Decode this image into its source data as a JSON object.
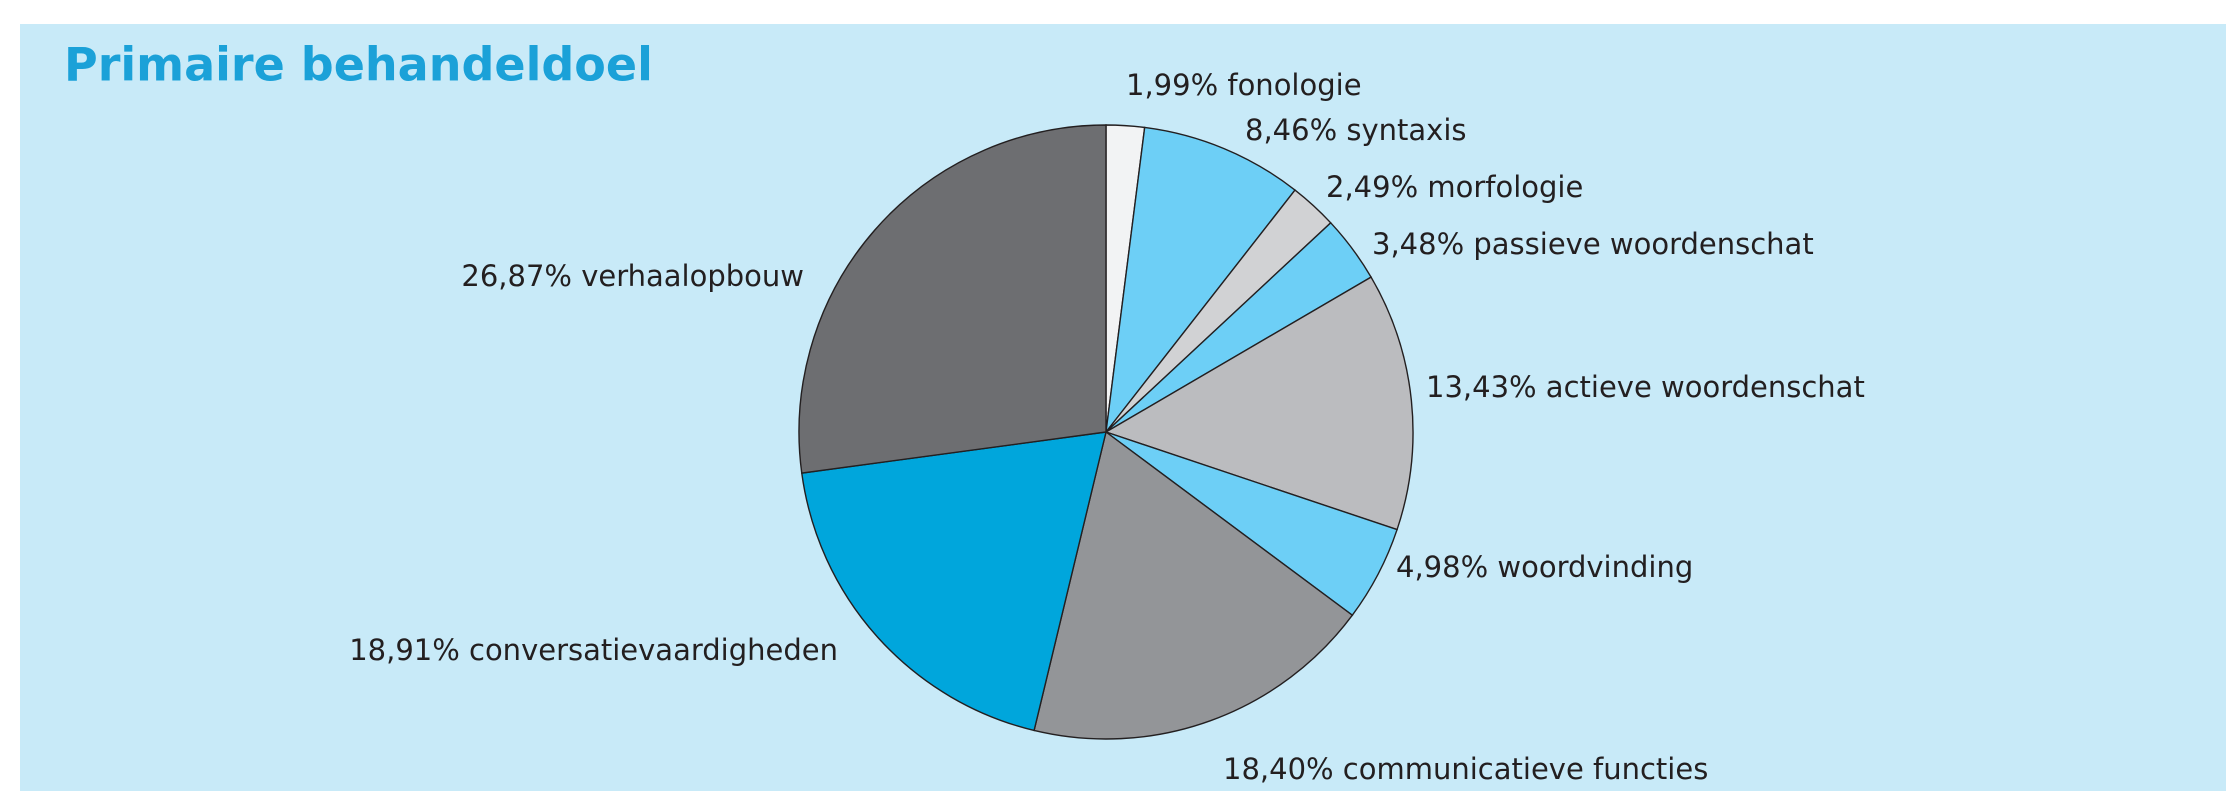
{
  "chart_data": {
    "type": "pie",
    "title": "Primaire behandeldoel",
    "categories": [
      "fonologie",
      "syntaxis",
      "morfologie",
      "passieve woordenschat",
      "actieve woordenschat",
      "woordvinding",
      "communicatieve functies",
      "conversatievaardigheden",
      "verhaalopbouw"
    ],
    "values": [
      1.99,
      8.46,
      2.49,
      3.48,
      13.43,
      4.98,
      18.4,
      18.91,
      26.87
    ],
    "value_labels": [
      "1,99%",
      "8,46%",
      "2,49%",
      "3,48%",
      "13,43%",
      "4,98%",
      "18,40%",
      "18,91%",
      "26,87%"
    ],
    "colors": [
      "#f2f3f4",
      "#6dcff6",
      "#d1d2d4",
      "#6dcff6",
      "#bbbcbf",
      "#6dcff6",
      "#939598",
      "#00a6dc",
      "#6d6e71"
    ]
  }
}
